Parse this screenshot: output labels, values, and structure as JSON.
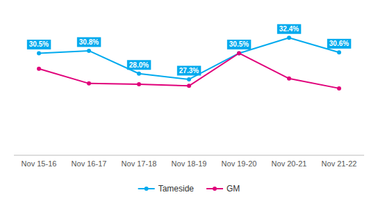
{
  "chart_data": {
    "type": "line",
    "categories": [
      "Nov 15-16",
      "Nov 16-17",
      "Nov 17-18",
      "Nov 18-19",
      "Nov 19-20",
      "Nov 20-21",
      "Nov 21-22"
    ],
    "series": [
      {
        "name": "Tameside",
        "color": "#00AAEE",
        "marker": "circle",
        "data_labels": true,
        "values": [
          30.5,
          30.8,
          28.0,
          27.3,
          30.5,
          32.4,
          30.6
        ],
        "value_labels": [
          "30.5%",
          "30.8%",
          "28.0%",
          "27.3%",
          "30.5%",
          "32.4%",
          "30.6%"
        ]
      },
      {
        "name": "GM",
        "color": "#E0007A",
        "marker": "circle",
        "data_labels": false,
        "values": [
          28.6,
          26.8,
          26.7,
          26.5,
          30.5,
          27.4,
          26.2
        ]
      }
    ],
    "ylim": [
      18,
      36
    ],
    "tick_labels": "x",
    "grid": false,
    "legend": "bottom"
  }
}
